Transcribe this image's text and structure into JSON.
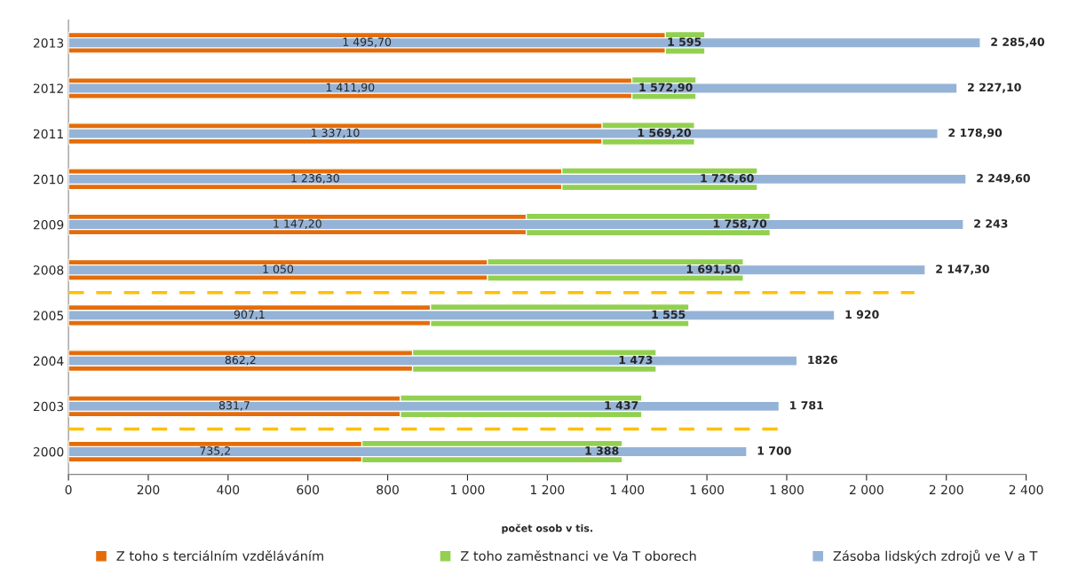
{
  "chart_data": {
    "type": "bar",
    "orientation": "horizontal",
    "xlabel": "počet osob v tis.",
    "categories": [
      "2013",
      "2012",
      "2011",
      "2010",
      "2009",
      "2008",
      "2005",
      "2004",
      "2003",
      "2000"
    ],
    "series": [
      {
        "name": "Z toho s terciálním vzděláváním",
        "color": "#e46c0a",
        "values": [
          1495.7,
          1411.9,
          1337.1,
          1236.3,
          1147.2,
          1050,
          907.1,
          862.2,
          831.7,
          735.2
        ],
        "value_labels": [
          "1 495,70",
          "1 411,90",
          "1 337,10",
          "1 236,30",
          "1 147,20",
          "1 050",
          "907,1",
          "862,2",
          "831,7",
          "735,2"
        ]
      },
      {
        "name": "Z toho zaměstnanci ve Va T oborech",
        "color": "#92d050",
        "values": [
          1595,
          1572.9,
          1569.2,
          1726.6,
          1758.7,
          1691.5,
          1555,
          1473,
          1437,
          1388
        ],
        "value_labels": [
          "1 595",
          "1 572,90",
          "1 569,20",
          "1 726,60",
          "1 758,70",
          "1 691,50",
          "1 555",
          "1 473",
          "1 437",
          "1 388"
        ]
      },
      {
        "name": "Zásoba lidských zdrojů ve V a T",
        "color": "#95b3d7",
        "values": [
          2285.4,
          2227.1,
          2178.9,
          2249.6,
          2243,
          2147.3,
          1920,
          1826,
          1781,
          1700
        ],
        "value_labels": [
          "2 285,40",
          "2 227,10",
          "2 178,90",
          "2 249,60",
          "2 243",
          "2 147,30",
          "1 920",
          "1826",
          "1 781",
          "1 700"
        ]
      }
    ],
    "xlim": [
      0,
      2400
    ],
    "xticks": [
      0,
      200,
      400,
      600,
      800,
      {
        "value": 1000,
        "label": "1 000"
      },
      {
        "value": 1200,
        "label": "1 200"
      },
      {
        "value": 1400,
        "label": "1 400"
      },
      {
        "value": 1600,
        "label": "1 600"
      },
      {
        "value": 1800,
        "label": "1 800"
      },
      {
        "value": 2000,
        "label": "2 000"
      },
      {
        "value": 2200,
        "label": "2 200"
      },
      {
        "value": 2400,
        "label": "2 400"
      }
    ],
    "grid": false,
    "legend": "bottom",
    "stacked": false
  }
}
